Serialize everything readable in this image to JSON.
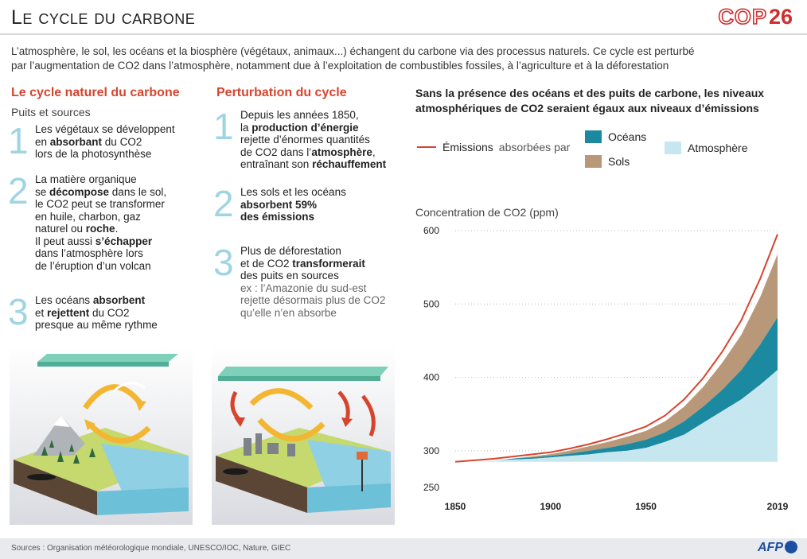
{
  "header": {
    "title": "Le cycle du carbone",
    "cop_logo_text": "COP",
    "cop_logo_number": "26"
  },
  "intro": {
    "line1": "L’atmosphère, le sol, les océans et la biosphère (végétaux, animaux...) échangent du carbone via des processus naturels. Ce cycle est perturbé",
    "line2": "par l’augmentation de CO2 dans l’atmosphère, notamment due à l’exploitation de combustibles fossiles, à l’agriculture et à la déforestation"
  },
  "natural": {
    "heading": "Le cycle naturel du carbone",
    "subheading": "Puits et sources",
    "items": [
      {
        "num": "1",
        "l1a": "Les végétaux se développent",
        "l2a": "en ",
        "l2b": "absorbant",
        "l2c": " du CO2",
        "l3": "lors de la photosynthèse"
      },
      {
        "num": "2",
        "l1": "La matière organique",
        "l2a": "se ",
        "l2b": "décompose",
        "l2c": " dans le sol,",
        "l3": "le CO2 peut se transformer",
        "l4": "en huile, charbon, gaz",
        "l5a": "naturel ou ",
        "l5b": "roche",
        "l5c": ".",
        "l6a": "Il peut aussi ",
        "l6b": "s’échapper",
        "l7": "dans l’atmosphère lors",
        "l8": "de l’éruption d’un volcan"
      },
      {
        "num": "3",
        "l1a": "Les océans ",
        "l1b": "absorbent",
        "l2a": "et ",
        "l2b": "rejettent",
        "l2c": " du CO2",
        "l3": "presque au même rythme"
      }
    ]
  },
  "perturbation": {
    "heading": "Perturbation du cycle",
    "items": [
      {
        "num": "1",
        "l1": "Depuis les années 1850,",
        "l2a": "la ",
        "l2b": "production d’énergie",
        "l3": "rejette d’énormes quantités",
        "l4a": "de CO2 dans l’",
        "l4b": "atmosphère",
        "l4c": ",",
        "l5a": "entraînant son ",
        "l5b": "réchauffement"
      },
      {
        "num": "2",
        "l1": "Les sols et les océans",
        "l2": "absorbent 59%",
        "l3": "des émissions"
      },
      {
        "num": "3",
        "l1": "Plus de déforestation",
        "l2a": "et de CO2 ",
        "l2b": "transformerait",
        "l3": "des puits en sources",
        "l4": "ex : l’Amazonie du sud-est",
        "l5": "rejette désormais plus de CO2",
        "l6": "qu’elle n’en absorbe"
      }
    ]
  },
  "chart_header": {
    "title_line1": "Sans la présence des océans et des puits de carbone, les niveaux",
    "title_line2": "atmosphériques de CO2 seraient égaux aux niveaux d’émissions",
    "legend_emissions": "Émissions",
    "legend_absorbed_by": "absorbées par",
    "legend_oceans": "Océans",
    "legend_sols": "Sols",
    "legend_atmosphere": "Atmosphère",
    "y_axis_label": "Concentration de CO2 (ppm)"
  },
  "colors": {
    "accent_red": "#d7442e",
    "oceans": "#1b8aa0",
    "sols": "#b89878",
    "atmosphere": "#c6e6f0",
    "emissions_line": "#d7442e"
  },
  "chart_data": {
    "type": "area",
    "x": [
      1850,
      1870,
      1890,
      1900,
      1910,
      1920,
      1930,
      1940,
      1950,
      1960,
      1970,
      1980,
      1990,
      2000,
      2010,
      2019
    ],
    "series": [
      {
        "name": "Atmosphère",
        "values": [
          285,
          287,
          289,
          291,
          293,
          295,
          298,
          300,
          304,
          312,
          322,
          338,
          354,
          370,
          390,
          410
        ]
      },
      {
        "name": "Océans",
        "values": [
          285,
          288,
          291,
          293,
          296,
          300,
          304,
          309,
          315,
          325,
          340,
          360,
          383,
          410,
          445,
          482
        ]
      },
      {
        "name": "Sols",
        "values": [
          285,
          289,
          294,
          297,
          301,
          306,
          312,
          319,
          327,
          340,
          360,
          387,
          420,
          458,
          510,
          568
        ]
      },
      {
        "name": "Émissions",
        "values": [
          285,
          289,
          295,
          298,
          303,
          309,
          316,
          324,
          333,
          348,
          370,
          399,
          435,
          478,
          535,
          595
        ]
      }
    ],
    "x_ticks": [
      1850,
      1900,
      1950,
      2019
    ],
    "y_ticks": [
      250,
      300,
      400,
      500,
      600
    ],
    "xlim": [
      1850,
      2019
    ],
    "ylim": [
      250,
      600
    ],
    "ylabel": "Concentration de CO2 (ppm)",
    "grid": "dotted horizontal"
  },
  "footer": {
    "sources": "Sources : Organisation météorologique mondiale, UNESCO/IOC, Nature, GIEC",
    "agency": "AFP"
  }
}
